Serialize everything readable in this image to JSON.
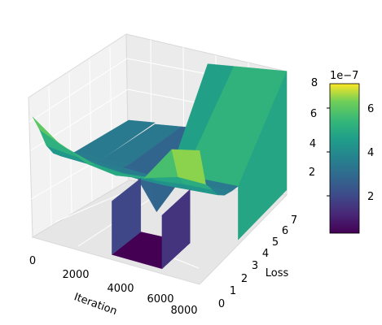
{
  "chart_data": {
    "type": "surface3d",
    "title": "",
    "xlabel": "Iteration",
    "ylabel": "Loss",
    "zlabel": "",
    "x_ticks": [
      "0",
      "2000",
      "4000",
      "6000",
      "8000"
    ],
    "y_ticks": [
      "0",
      "1",
      "2",
      "3",
      "4",
      "5",
      "6",
      "7"
    ],
    "z_ticks": [
      "2",
      "4",
      "6",
      "8"
    ],
    "z_scale_label": "1e−7",
    "xlim": [
      0,
      8000
    ],
    "ylim": [
      0,
      7
    ],
    "zlim": [
      0,
      8.5e-07
    ],
    "colormap": "viridis",
    "colorbar": {
      "ticks": [
        "2",
        "4",
        "6"
      ],
      "scale_label": "1e−7",
      "range": [
        3e-08,
        7.4e-07
      ]
    },
    "surface_rows": [
      {
        "loss": 0.0,
        "z": [
          7.2e-07,
          6e-07,
          5.3e-07,
          5.1e-07,
          5.4e-07,
          7.6e-07,
          8e-07
        ]
      },
      {
        "loss": 0.5,
        "z": [
          6.2e-07,
          5.5e-07,
          5e-07,
          4.9e-07,
          5.1e-07,
          5.6e-07,
          5.6e-07
        ]
      },
      {
        "loss": 1.0,
        "z": [
          5e-07,
          4.8e-07,
          4.6e-07,
          4.5e-07,
          4.6e-07,
          4.8e-07,
          4.9e-07
        ]
      },
      {
        "loss": 1.5,
        "z": [
          4.3e-07,
          4.2e-07,
          4.1e-07,
          4e-07,
          4e-07,
          4.1e-07,
          4.2e-07
        ]
      },
      {
        "loss": 2.0,
        "z": [
          3.9e-07,
          3.8e-07,
          3.7e-07,
          3.6e-07,
          3.6e-07,
          3.7e-07,
          3.8e-07
        ]
      },
      {
        "loss": 2.6,
        "z": [
          3.7e-07,
          3.6e-07,
          3.6e-07,
          3.5e-07,
          3.5e-07,
          3.6e-07,
          3.6e-07
        ]
      },
      {
        "loss": 3.1,
        "z": [
          3.6e-07,
          3.5e-07,
          3.5e-07,
          1e-07,
          3.5e-07,
          3.5e-07,
          3.5e-07
        ]
      }
    ],
    "back_plateau_z": 7.4e-07,
    "floor_z": 3e-08
  }
}
